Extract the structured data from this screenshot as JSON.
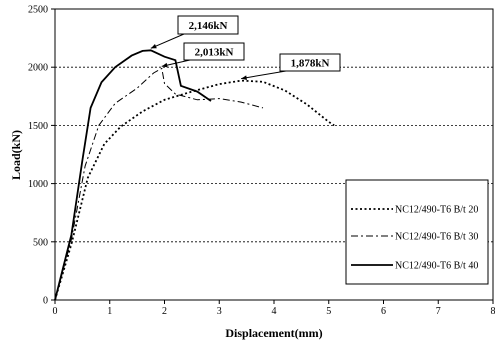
{
  "chart_data": {
    "type": "line",
    "xlabel": "Displacement(mm)",
    "ylabel": "Load(kN)",
    "xlim": [
      0,
      8
    ],
    "ylim": [
      0,
      2500
    ],
    "xticks": [
      "0",
      "1",
      "2",
      "3",
      "4",
      "5",
      "6",
      "7",
      "8"
    ],
    "yticks": [
      "0",
      "500",
      "1000",
      "1500",
      "2000",
      "2500"
    ],
    "grid": "horizontal dashed",
    "legend_position": "right",
    "series": [
      {
        "name": "NC12/490-T6 B/t 20",
        "style": "dotted",
        "peak_label": "1,878kN",
        "points": [
          [
            0,
            0
          ],
          [
            0.3,
            480
          ],
          [
            0.6,
            1050
          ],
          [
            0.9,
            1340
          ],
          [
            1.2,
            1490
          ],
          [
            1.6,
            1620
          ],
          [
            2.0,
            1720
          ],
          [
            2.5,
            1790
          ],
          [
            3.0,
            1855
          ],
          [
            3.4,
            1885
          ],
          [
            3.8,
            1875
          ],
          [
            4.2,
            1800
          ],
          [
            4.6,
            1680
          ],
          [
            5.0,
            1530
          ],
          [
            5.1,
            1500
          ]
        ]
      },
      {
        "name": "NC12/490-T6 B/t 30",
        "style": "dash-dot",
        "peak_label": "2,013kN",
        "points": [
          [
            0,
            0
          ],
          [
            0.3,
            520
          ],
          [
            0.55,
            1150
          ],
          [
            0.8,
            1500
          ],
          [
            1.1,
            1690
          ],
          [
            1.5,
            1820
          ],
          [
            1.8,
            1950
          ],
          [
            1.95,
            1990
          ],
          [
            2.0,
            1860
          ],
          [
            2.2,
            1770
          ],
          [
            2.6,
            1720
          ],
          [
            3.0,
            1730
          ],
          [
            3.4,
            1700
          ],
          [
            3.8,
            1650
          ]
        ]
      },
      {
        "name": "NC12/490-T6 B/t 40",
        "style": "solid",
        "peak_label": "2,146kN",
        "points": [
          [
            0,
            0
          ],
          [
            0.3,
            560
          ],
          [
            0.5,
            1200
          ],
          [
            0.65,
            1650
          ],
          [
            0.85,
            1870
          ],
          [
            1.1,
            2000
          ],
          [
            1.4,
            2100
          ],
          [
            1.6,
            2140
          ],
          [
            1.75,
            2145
          ],
          [
            2.0,
            2090
          ],
          [
            2.2,
            2060
          ],
          [
            2.3,
            1840
          ],
          [
            2.6,
            1790
          ],
          [
            2.85,
            1710
          ]
        ]
      }
    ],
    "annotations": [
      {
        "text": "2,146kN",
        "series": 2
      },
      {
        "text": "2,013kN",
        "series": 1
      },
      {
        "text": "1,878kN",
        "series": 0
      }
    ]
  }
}
